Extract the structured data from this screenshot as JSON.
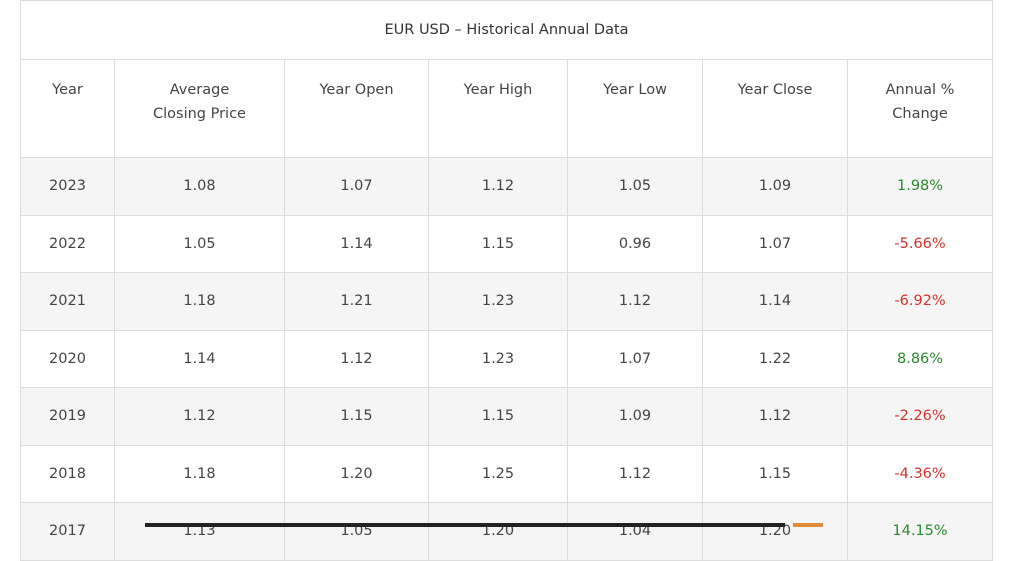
{
  "table": {
    "title": "EUR USD – Historical Annual Data",
    "headers": [
      "Year",
      "Average Closing Price",
      "Year Open",
      "Year High",
      "Year Low",
      "Year Close",
      "Annual % Change"
    ],
    "rows": [
      [
        "2023",
        "1.08",
        "1.07",
        "1.12",
        "1.05",
        "1.09",
        "1.98%"
      ],
      [
        "2022",
        "1.05",
        "1.14",
        "1.15",
        "0.96",
        "1.07",
        "-5.66%"
      ],
      [
        "2021",
        "1.18",
        "1.21",
        "1.23",
        "1.12",
        "1.14",
        "-6.92%"
      ],
      [
        "2020",
        "1.14",
        "1.12",
        "1.23",
        "1.07",
        "1.22",
        "8.86%"
      ],
      [
        "2019",
        "1.12",
        "1.15",
        "1.15",
        "1.09",
        "1.12",
        "-2.26%"
      ],
      [
        "2018",
        "1.18",
        "1.20",
        "1.25",
        "1.12",
        "1.15",
        "-4.36%"
      ],
      [
        "2017",
        "1.13",
        "1.05",
        "1.20",
        "1.04",
        "1.20",
        "14.15%"
      ]
    ],
    "change_colors": {
      "up": "#2a8a2a",
      "down": "#d8302b"
    }
  }
}
